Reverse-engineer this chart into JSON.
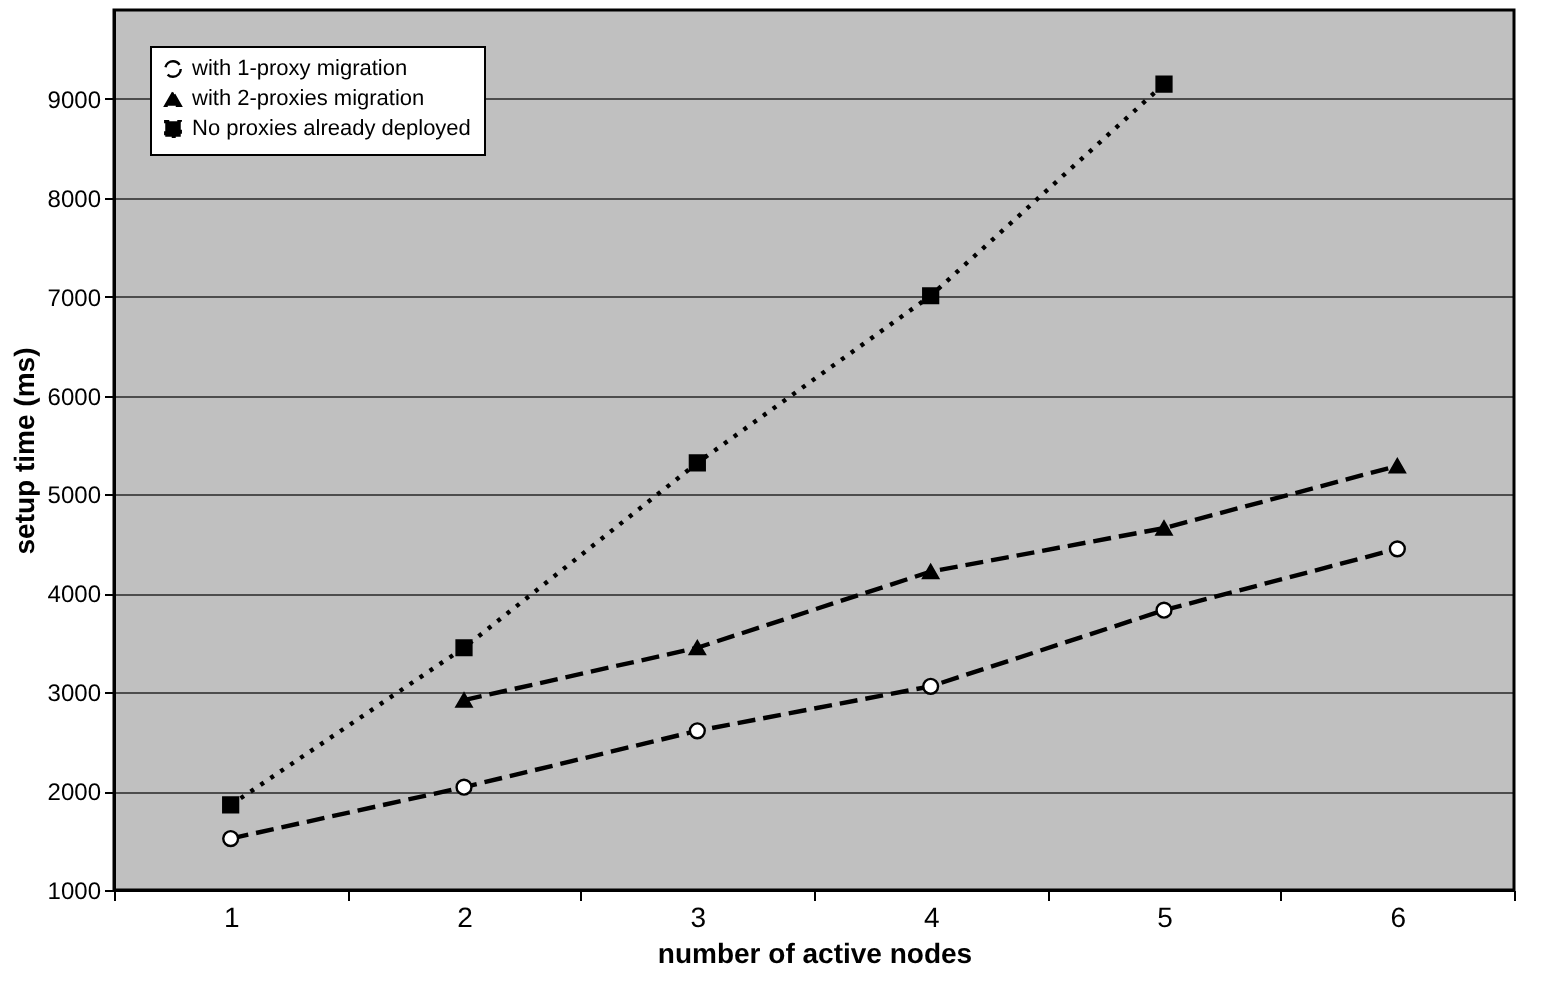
{
  "chart_data": {
    "type": "line",
    "xlabel": "number of active nodes",
    "ylabel": "setup time (ms)",
    "categories": [
      "1",
      "2",
      "3",
      "4",
      "5",
      "6"
    ],
    "series": [
      {
        "name": "with 1-proxy migration",
        "color": "#000000",
        "marker": "circle",
        "line_style": "dashed",
        "values": [
          1520,
          2040,
          2610,
          3060,
          3830,
          4450
        ]
      },
      {
        "name": "with 2-proxies migration",
        "color": "#000000",
        "marker": "triangle",
        "line_style": "dashed",
        "values": [
          null,
          2920,
          3450,
          4220,
          4660,
          5290
        ]
      },
      {
        "name": "No proxies already deployed",
        "color": "#000000",
        "marker": "square",
        "line_style": "dotted",
        "values": [
          1860,
          3450,
          5320,
          7010,
          9150,
          null
        ]
      }
    ],
    "ylim": [
      1000,
      9900
    ],
    "yticks": [
      1000,
      2000,
      3000,
      4000,
      5000,
      6000,
      7000,
      8000,
      9000
    ],
    "grid": "y",
    "legend": "top left"
  }
}
